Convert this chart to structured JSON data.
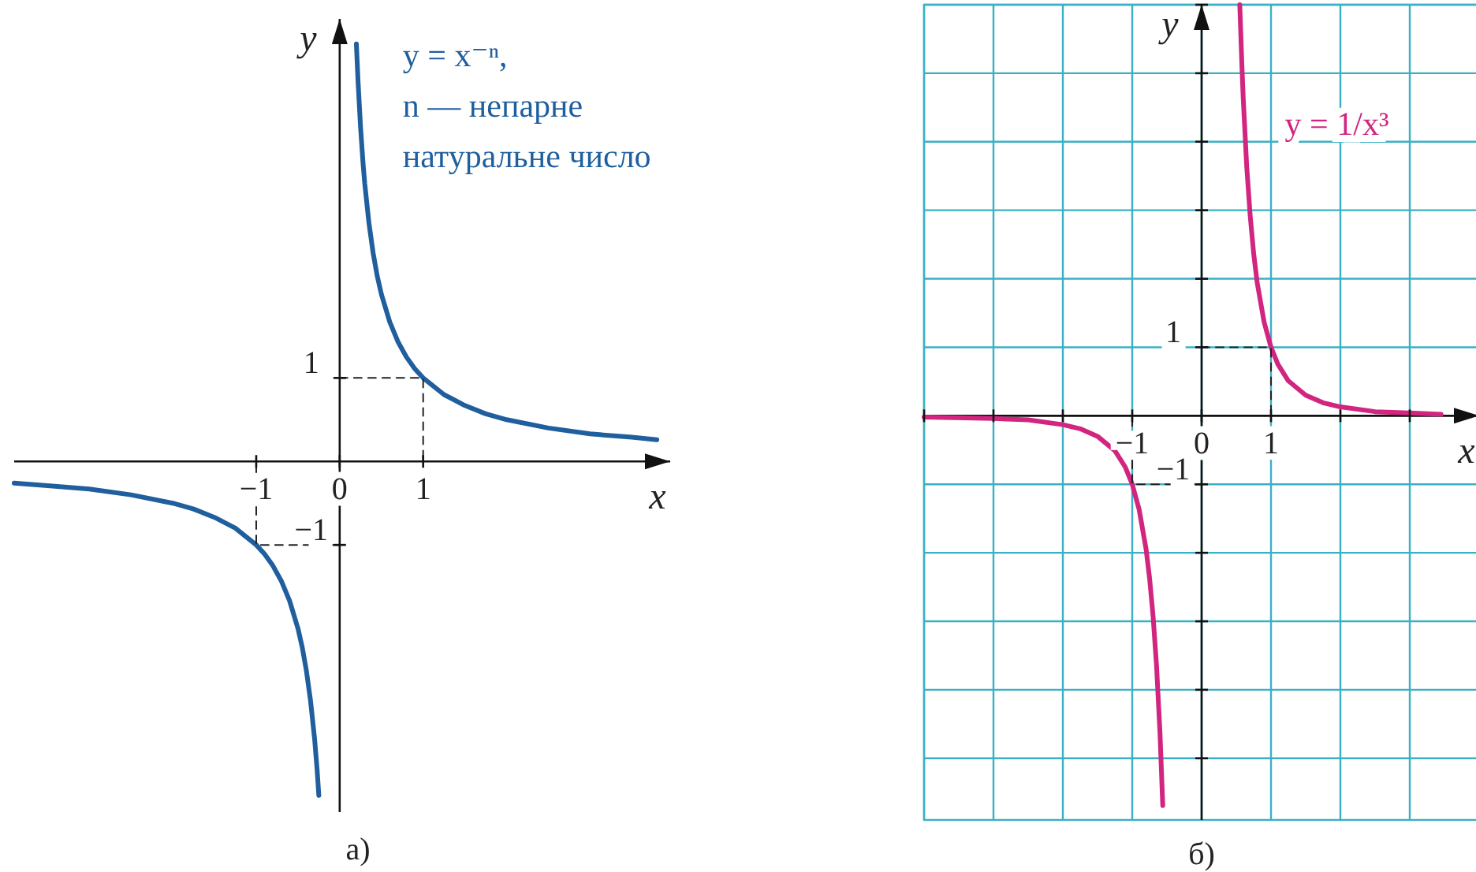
{
  "chart_data": [
    {
      "type": "line",
      "title": "а)",
      "xlabel": "x",
      "ylabel": "y",
      "xlim": [
        -3.9,
        3.96
      ],
      "ylim": [
        -4.2,
        5.3
      ],
      "xticks": [
        {
          "value": -1,
          "label": "−1"
        },
        {
          "value": 0,
          "label": "0"
        },
        {
          "value": 1,
          "label": "1"
        }
      ],
      "yticks": [
        {
          "value": -1,
          "label": "−1"
        },
        {
          "value": 1,
          "label": "1"
        }
      ],
      "annotations": [
        "y = x⁻ⁿ,",
        "n — непарне натуральне число"
      ],
      "series": [
        {
          "color": "#1f5f9e",
          "x": [
            -3.9,
            -3.5,
            -3,
            -2.5,
            -2,
            -1.75,
            -1.5,
            -1.25,
            -1,
            -0.9,
            -0.8,
            -0.7,
            -0.6,
            -0.5,
            -0.45,
            -0.4,
            -0.35,
            -0.3,
            -0.27,
            -0.25,
            null,
            0.2,
            0.22,
            0.25,
            0.28,
            0.3,
            0.35,
            0.4,
            0.45,
            0.5,
            0.6,
            0.7,
            0.8,
            0.9,
            1,
            1.25,
            1.5,
            1.75,
            2,
            2.5,
            3,
            3.5,
            3.8
          ],
          "values": [
            -0.26,
            -0.29,
            -0.33,
            -0.4,
            -0.5,
            -0.57,
            -0.67,
            -0.8,
            -1,
            -1.11,
            -1.25,
            -1.43,
            -1.67,
            -2,
            -2.22,
            -2.5,
            -2.86,
            -3.33,
            -3.7,
            -4,
            null,
            5,
            4.55,
            4,
            3.57,
            3.33,
            2.86,
            2.5,
            2.22,
            2,
            1.67,
            1.43,
            1.25,
            1.11,
            1,
            0.8,
            0.67,
            0.57,
            0.5,
            0.4,
            0.33,
            0.29,
            0.26
          ]
        },
        {
          "color": "#222222",
          "line_style": "dashed",
          "x": [
            0,
            1,
            1
          ],
          "values": [
            1,
            1,
            0
          ]
        },
        {
          "color": "#222222",
          "line_style": "dashed",
          "x": [
            0,
            -1,
            -1
          ],
          "values": [
            -1,
            -1,
            0
          ]
        }
      ]
    },
    {
      "type": "line",
      "title": "б)",
      "xlabel": "x",
      "ylabel": "y",
      "xlim": [
        -4,
        4
      ],
      "ylim": [
        -5.9,
        6
      ],
      "grid": true,
      "xticks": [
        {
          "value": -4,
          "label": null
        },
        {
          "value": -3,
          "label": null
        },
        {
          "value": -2,
          "label": null
        },
        {
          "value": -1,
          "label": "−1"
        },
        {
          "value": 0,
          "label": "0"
        },
        {
          "value": 1,
          "label": "1"
        },
        {
          "value": 2,
          "label": null
        },
        {
          "value": 3,
          "label": null
        },
        {
          "value": 4,
          "label": null
        }
      ],
      "yticks": [
        {
          "value": -5,
          "label": null
        },
        {
          "value": -4,
          "label": null
        },
        {
          "value": -3,
          "label": null
        },
        {
          "value": -2,
          "label": null
        },
        {
          "value": -1,
          "label": "−1"
        },
        {
          "value": 1,
          "label": "1"
        },
        {
          "value": 2,
          "label": null
        },
        {
          "value": 3,
          "label": null
        },
        {
          "value": 4,
          "label": null
        },
        {
          "value": 5,
          "label": null
        },
        {
          "value": 6,
          "label": null
        }
      ],
      "annotations": [
        "y = 1/x³"
      ],
      "series": [
        {
          "color": "#d1257f",
          "x": [
            -4,
            -3,
            -2.5,
            -2,
            -1.75,
            -1.5,
            -1.25,
            -1.1,
            -1,
            -0.9,
            -0.8,
            -0.75,
            -0.7,
            -0.65,
            -0.6,
            -0.56,
            null,
            0.55,
            0.58,
            0.6,
            0.65,
            0.7,
            0.75,
            0.8,
            0.9,
            1,
            1.1,
            1.25,
            1.5,
            1.75,
            2,
            2.5,
            3,
            3.45
          ],
          "values": [
            -0.02,
            -0.04,
            -0.06,
            -0.13,
            -0.19,
            -0.3,
            -0.51,
            -0.75,
            -1,
            -1.37,
            -1.95,
            -2.37,
            -2.92,
            -3.64,
            -4.63,
            -5.69,
            null,
            6,
            5.13,
            4.63,
            3.64,
            2.92,
            2.37,
            1.95,
            1.37,
            1,
            0.75,
            0.51,
            0.3,
            0.19,
            0.13,
            0.06,
            0.04,
            0.02
          ]
        },
        {
          "color": "#222222",
          "line_style": "dashed",
          "x": [
            0,
            1,
            1
          ],
          "values": [
            1,
            1,
            0
          ]
        },
        {
          "color": "#222222",
          "line_style": "dashed",
          "x": [
            0,
            -1,
            -1
          ],
          "values": [
            -1,
            -1,
            0
          ]
        }
      ]
    }
  ]
}
